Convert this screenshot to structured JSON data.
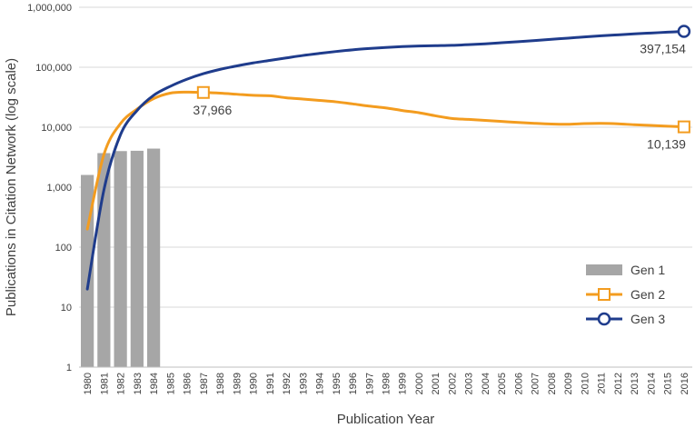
{
  "chart_data": {
    "type": "bar+line",
    "xlabel": "Publication Year",
    "ylabel": "Publications in Citation Network (log scale)",
    "yscale": "log",
    "ylim": [
      1,
      1000000
    ],
    "y_ticks": [
      "1",
      "10",
      "100",
      "1,000",
      "10,000",
      "100,000",
      "1,000,000"
    ],
    "y_tick_values": [
      1,
      10,
      100,
      1000,
      10000,
      100000,
      1000000
    ],
    "grid": "horizontal",
    "legend_position": "bottom-right",
    "categories": [
      "1980",
      "1981",
      "1982",
      "1983",
      "1984",
      "1985",
      "1986",
      "1987",
      "1988",
      "1989",
      "1990",
      "1991",
      "1992",
      "1993",
      "1994",
      "1995",
      "1996",
      "1997",
      "1998",
      "1999",
      "2000",
      "2001",
      "2002",
      "2003",
      "2004",
      "2005",
      "2006",
      "2007",
      "2008",
      "2009",
      "2010",
      "2011",
      "2012",
      "2013",
      "2014",
      "2015",
      "2016"
    ],
    "series": [
      {
        "name": "Gen 1",
        "kind": "bar",
        "color": "#a6a6a6",
        "values": [
          1600,
          3700,
          4000,
          4050,
          4400,
          null,
          null,
          null,
          null,
          null,
          null,
          null,
          null,
          null,
          null,
          null,
          null,
          null,
          null,
          null,
          null,
          null,
          null,
          null,
          null,
          null,
          null,
          null,
          null,
          null,
          null,
          null,
          null,
          null,
          null,
          null,
          null
        ]
      },
      {
        "name": "Gen 2",
        "kind": "line",
        "color": "#f39c1f",
        "marker": "square",
        "values": [
          200,
          3500,
          11500,
          20000,
          30000,
          37000,
          38500,
          37966,
          37000,
          35500,
          34000,
          33500,
          31000,
          29500,
          28000,
          26500,
          24500,
          22500,
          21000,
          19000,
          17500,
          15500,
          14000,
          13500,
          13000,
          12500,
          12000,
          11600,
          11300,
          11200,
          11500,
          11600,
          11400,
          11000,
          10700,
          10400,
          10139
        ],
        "point_labels": [
          {
            "index": 7,
            "text": "37,966"
          },
          {
            "index": 36,
            "text": "10,139"
          }
        ]
      },
      {
        "name": "Gen 3",
        "kind": "line",
        "color": "#1f3c8c",
        "marker": "circle",
        "values": [
          20,
          900,
          7500,
          19000,
          34000,
          48000,
          63000,
          78000,
          92000,
          105000,
          118000,
          130000,
          143000,
          157000,
          170000,
          183000,
          195000,
          205000,
          214000,
          221000,
          226000,
          229000,
          232000,
          238000,
          246000,
          256000,
          267000,
          279000,
          292000,
          306000,
          320000,
          334000,
          347000,
          360000,
          372000,
          384000,
          397154
        ],
        "point_labels": [
          {
            "index": 36,
            "text": "397,154"
          }
        ]
      }
    ]
  }
}
